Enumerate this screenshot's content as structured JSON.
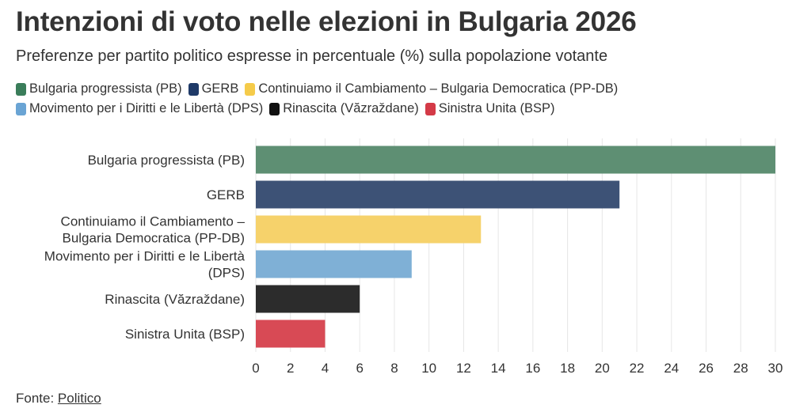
{
  "chart_data": {
    "type": "bar",
    "orientation": "horizontal",
    "title": "Intenzioni di voto nelle elezioni in Bulgaria 2026",
    "subtitle": "Preferenze per partito politico espresse in percentuale (%) sulla popolazione votante",
    "categories": [
      "Bulgaria progressista (PB)",
      "GERB",
      "Continuiamo il Cambiamento – Bulgaria Democratica (PP-DB)",
      "Movimento per i Diritti e le Libertà (DPS)",
      "Rinascita (Văzraždane)",
      "Sinistra Unita (BSP)"
    ],
    "category_label_lines": [
      [
        "Bulgaria progressista (PB)"
      ],
      [
        "GERB"
      ],
      [
        "Continuiamo il Cambiamento –",
        "Bulgaria Democratica (PP-DB)"
      ],
      [
        "Movimento per i Diritti e le Libertà",
        "(DPS)"
      ],
      [
        "Rinascita (Văzraždane)"
      ],
      [
        "Sinistra Unita (BSP)"
      ]
    ],
    "values": [
      30,
      21,
      13,
      9,
      6,
      4
    ],
    "colors": [
      "#5e8f73",
      "#3d5276",
      "#f6d26b",
      "#7fb0d6",
      "#2c2c2c",
      "#d84a55"
    ],
    "xlabel": "",
    "ylabel": "",
    "xlim": [
      0,
      30
    ],
    "xticks": [
      0,
      2,
      4,
      6,
      8,
      10,
      12,
      14,
      16,
      18,
      20,
      22,
      24,
      26,
      28,
      30
    ],
    "grid": true,
    "legend": {
      "placement": "top-left",
      "rows": [
        [
          {
            "label": "Bulgaria progressista (PB)",
            "color": "#3a7d5a"
          },
          {
            "label": "GERB",
            "color": "#1f3a68"
          },
          {
            "label": "Continuiamo il Cambiamento – Bulgaria Democratica (PP-DB)",
            "color": "#f5cb4a"
          }
        ],
        [
          {
            "label": "Movimento per i Diritti e le Libertà (DPS)",
            "color": "#6aa4d4"
          },
          {
            "label": "Rinascita (Văzraždane)",
            "color": "#111111"
          },
          {
            "label": "Sinistra Unita (BSP)",
            "color": "#d43a47"
          }
        ]
      ]
    }
  },
  "source": {
    "prefix": "Fonte: ",
    "link_label": "Politico"
  }
}
